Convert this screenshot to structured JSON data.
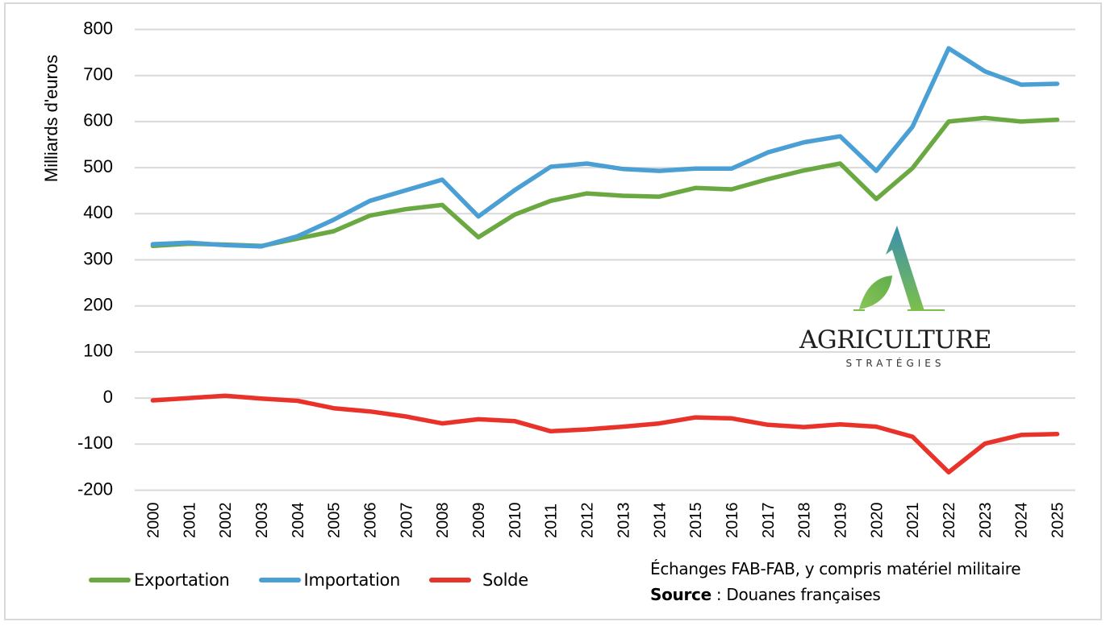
{
  "chart_data": {
    "type": "line",
    "title": "",
    "xlabel": "",
    "ylabel": "Milliards d'euros",
    "ylim": [
      -200,
      800
    ],
    "yticks": [
      800,
      700,
      600,
      500,
      400,
      300,
      200,
      100,
      0,
      -100,
      -200
    ],
    "grid": true,
    "legend_position": "bottom-left",
    "x": [
      "2000",
      "2001",
      "2002",
      "2003",
      "2004",
      "2005",
      "2006",
      "2007",
      "2008",
      "2009",
      "2010",
      "2011",
      "2012",
      "2013",
      "2014",
      "2015",
      "2016",
      "2017",
      "2018",
      "2019",
      "2020",
      "2021",
      "2022",
      "2023",
      "2024",
      "2025"
    ],
    "series": [
      {
        "name": "Exportation",
        "color": "#6aa842",
        "values": [
          330,
          335,
          333,
          330,
          346,
          362,
          396,
          410,
          419,
          349,
          398,
          428,
          444,
          439,
          437,
          456,
          453,
          475,
          494,
          509,
          432,
          499,
          600,
          608,
          600,
          604
        ]
      },
      {
        "name": "Importation",
        "color": "#4a9fd4",
        "values": [
          334,
          337,
          332,
          329,
          351,
          387,
          428,
          451,
          474,
          394,
          451,
          502,
          509,
          497,
          493,
          498,
          498,
          533,
          555,
          568,
          493,
          589,
          759,
          709,
          680,
          682
        ]
      },
      {
        "name": "Solde",
        "color": "#e8322a",
        "values": [
          -5,
          0,
          5,
          -1,
          -6,
          -22,
          -29,
          -40,
          -55,
          -46,
          -50,
          -72,
          -68,
          -62,
          -55,
          -42,
          -44,
          -58,
          -63,
          -57,
          -62,
          -84,
          -161,
          -99,
          -80,
          -78
        ]
      }
    ]
  },
  "legend": {
    "items": [
      {
        "label": "Exportation",
        "color": "#6aa842"
      },
      {
        "label": "Importation",
        "color": "#4a9fd4"
      },
      {
        "label": "Solde",
        "color": "#e8322a"
      }
    ]
  },
  "note": {
    "line1": "Échanges FAB-FAB, y compris matériel militaire",
    "source_label": "Source",
    "source_text": " : Douanes françaises"
  },
  "logo": {
    "word": "AGRICULTURE",
    "sub": "STRATÉGIES"
  }
}
